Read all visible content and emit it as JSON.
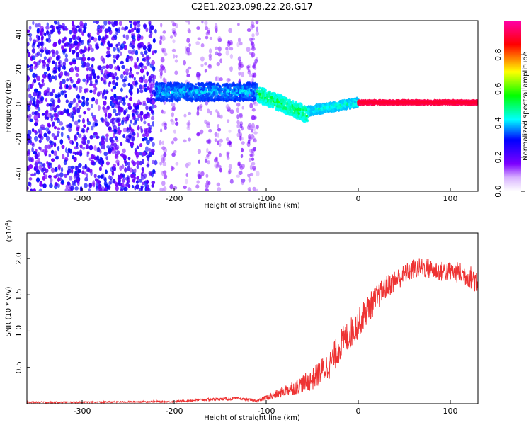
{
  "figure_title": "C2E1.2023.098.22.28.G17",
  "chart_data": [
    {
      "type": "heatmap",
      "title": "C2E1.2023.098.22.28.G17",
      "xlabel": "Height of straight line (km)",
      "ylabel": "Frequency (Hz)",
      "xlim": [
        -360,
        130
      ],
      "ylim": [
        -50,
        48
      ],
      "x_ticks": [
        -300,
        -200,
        -100,
        0,
        100
      ],
      "y_ticks": [
        -40,
        -20,
        0,
        20,
        40
      ],
      "colorbar": {
        "label": "Normalized spectral amplitude",
        "range": [
          0.0,
          1.0
        ],
        "ticks": [
          0.0,
          0.2,
          0.4,
          0.6,
          0.8
        ],
        "colormap": [
          "#ffffff",
          "#7d00ff",
          "#0000ff",
          "#00ffff",
          "#00ff00",
          "#ffff00",
          "#ff0000",
          "#ff00aa"
        ]
      },
      "regions": [
        {
          "x_range": [
            -360,
            -220
          ],
          "description": "broadband noise",
          "freq_range": [
            -50,
            48
          ],
          "amplitude": [
            0.1,
            0.3
          ]
        },
        {
          "x_range": [
            -220,
            -110
          ],
          "description": "sparse noise streaks",
          "freq_range": [
            -50,
            48
          ],
          "amplitude": [
            0.05,
            0.15
          ]
        },
        {
          "x_range": [
            -220,
            -110
          ],
          "description": "signal band",
          "center_freq": 7,
          "width_hz": 10,
          "amplitude": [
            0.2,
            0.45
          ]
        },
        {
          "x_range": [
            -110,
            -55
          ],
          "description": "signal band drifting down",
          "center_freq": [
            6,
            -6
          ],
          "width_hz": 9,
          "amplitude": [
            0.3,
            0.6
          ]
        },
        {
          "x_range": [
            -55,
            0
          ],
          "description": "signal band returning to zero",
          "center_freq": [
            -4,
            1
          ],
          "width_hz": 5,
          "amplitude": [
            0.3,
            0.5
          ]
        },
        {
          "x_range": [
            0,
            130
          ],
          "description": "strong narrow tone",
          "center_freq": 1,
          "width_hz": 2,
          "amplitude": [
            0.85,
            1.0
          ]
        }
      ]
    },
    {
      "type": "line",
      "title": "",
      "xlabel": "Height of straight line (km)",
      "ylabel": "SNR (10 * v/v)",
      "y_multiplier": "(x10^4)",
      "xlim": [
        -360,
        130
      ],
      "ylim": [
        0,
        2.35
      ],
      "x_ticks": [
        -300,
        -200,
        -100,
        0,
        100
      ],
      "y_ticks": [
        0.5,
        1.0,
        1.5,
        2.0
      ],
      "series": [
        {
          "color": "#ee3333",
          "x": [
            -360,
            -300,
            -250,
            -200,
            -160,
            -130,
            -110,
            -100,
            -90,
            -80,
            -70,
            -60,
            -50,
            -40,
            -30,
            -20,
            -10,
            0,
            10,
            20,
            30,
            40,
            50,
            60,
            70,
            80,
            90,
            100,
            110,
            120,
            130
          ],
          "y": [
            0.02,
            0.02,
            0.025,
            0.03,
            0.06,
            0.07,
            0.04,
            0.08,
            0.12,
            0.18,
            0.22,
            0.28,
            0.33,
            0.45,
            0.55,
            0.8,
            0.95,
            1.1,
            1.3,
            1.45,
            1.6,
            1.7,
            1.78,
            1.85,
            1.88,
            1.85,
            1.82,
            1.82,
            1.8,
            1.75,
            1.7
          ],
          "noise_amplitude": [
            0.01,
            0.01,
            0.01,
            0.012,
            0.02,
            0.02,
            0.015,
            0.04,
            0.06,
            0.08,
            0.1,
            0.12,
            0.15,
            0.18,
            0.2,
            0.22,
            0.22,
            0.2,
            0.2,
            0.18,
            0.16,
            0.15,
            0.14,
            0.14,
            0.14,
            0.14,
            0.14,
            0.14,
            0.15,
            0.15,
            0.2
          ]
        }
      ]
    }
  ]
}
